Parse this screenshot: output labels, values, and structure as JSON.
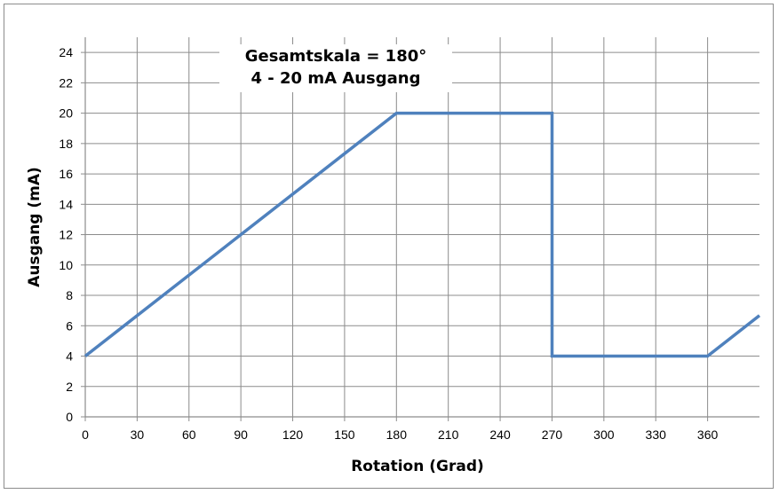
{
  "chart_data": {
    "type": "line",
    "title_lines": [
      "Gesamtskala = 180°",
      "4 - 20 mA Ausgang"
    ],
    "xlabel": "Rotation (Grad)",
    "ylabel": "Ausgang (mA)",
    "xlim": [
      0,
      390
    ],
    "ylim": [
      0,
      25
    ],
    "xticks": [
      0,
      30,
      60,
      90,
      120,
      150,
      180,
      210,
      240,
      270,
      300,
      330,
      360
    ],
    "yticks": [
      0,
      2,
      4,
      6,
      8,
      10,
      12,
      14,
      16,
      18,
      20,
      22,
      24
    ],
    "grid": true,
    "line_color": "#4f81bd",
    "series": [
      {
        "x": [
          0,
          180,
          270,
          270,
          360,
          390
        ],
        "y": [
          4,
          20,
          20,
          4,
          4,
          6.67
        ]
      }
    ]
  }
}
